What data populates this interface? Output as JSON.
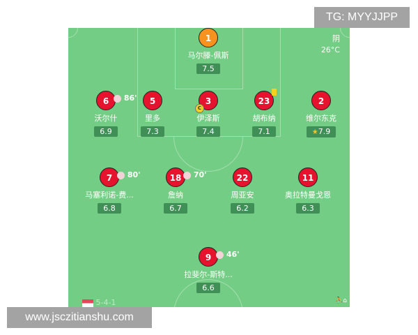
{
  "watermark_top": "TG: MYYJJPP",
  "watermark_bottom": "www.jsczitianshu.com",
  "weather": {
    "condition": "阴",
    "temp": "26°C"
  },
  "formation": "5-4-1",
  "colors": {
    "pitch": "#74cd84",
    "player": "#e5132d",
    "goalkeeper": "#f7921e",
    "rating_bg": "#3f8f56"
  },
  "goalkeeper": {
    "number": "1",
    "name": "马尔滕-佩斯",
    "rating": "7.5"
  },
  "defenders": [
    {
      "number": "6",
      "name": "沃尔什",
      "rating": "6.9",
      "sub": "86'"
    },
    {
      "number": "5",
      "name": "里多",
      "rating": "7.3"
    },
    {
      "number": "3",
      "name": "伊泽斯",
      "rating": "7.4",
      "captain": "C"
    },
    {
      "number": "23",
      "name": "胡布纳",
      "rating": "7.1",
      "yellow_card": true
    },
    {
      "number": "2",
      "name": "维尔东克",
      "rating": "7.9",
      "best": true
    }
  ],
  "midfielders": [
    {
      "number": "7",
      "name": "马塞利诺-费...",
      "rating": "6.8",
      "sub": "80'"
    },
    {
      "number": "18",
      "name": "詹纳",
      "rating": "6.7",
      "sub": "70'"
    },
    {
      "number": "22",
      "name": "周亚安",
      "rating": "6.2"
    },
    {
      "number": "11",
      "name": "奥拉特曼戈恩",
      "rating": "6.3"
    }
  ],
  "forward": {
    "number": "9",
    "name": "拉斐尔-斯特...",
    "rating": "6.6",
    "sub": "46'"
  }
}
